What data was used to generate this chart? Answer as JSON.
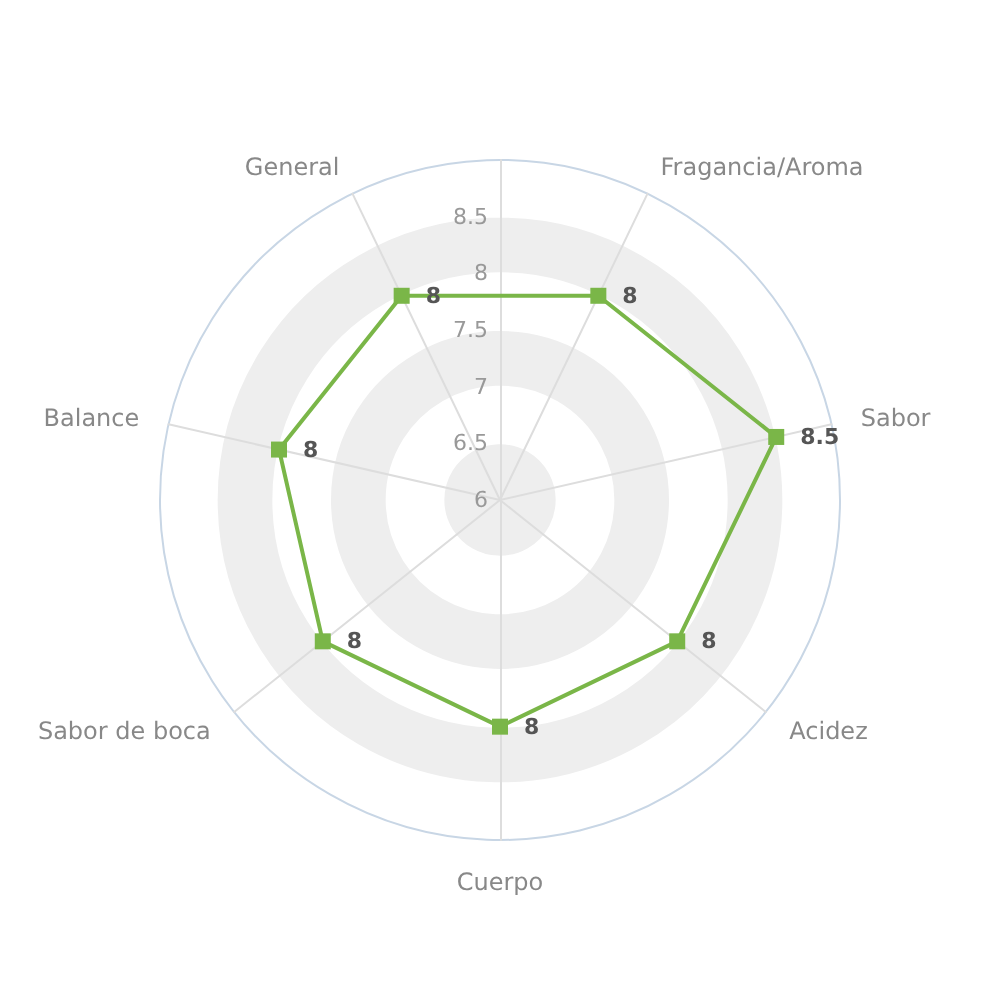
{
  "chart_data": {
    "type": "radar",
    "categories": [
      "General",
      "Fragancia/Aroma",
      "Sabor",
      "Acidez",
      "Cuerpo",
      "Sabor de boca",
      "Balance"
    ],
    "series": [
      {
        "color": "#7ab648",
        "values": [
          8,
          8,
          8.5,
          8,
          8,
          8,
          8
        ]
      }
    ],
    "ylim": [
      6,
      9
    ],
    "yticks": [
      6,
      6.5,
      7,
      7.5,
      8,
      8.5
    ],
    "data_labels": true,
    "marker": "square",
    "grid": true
  }
}
